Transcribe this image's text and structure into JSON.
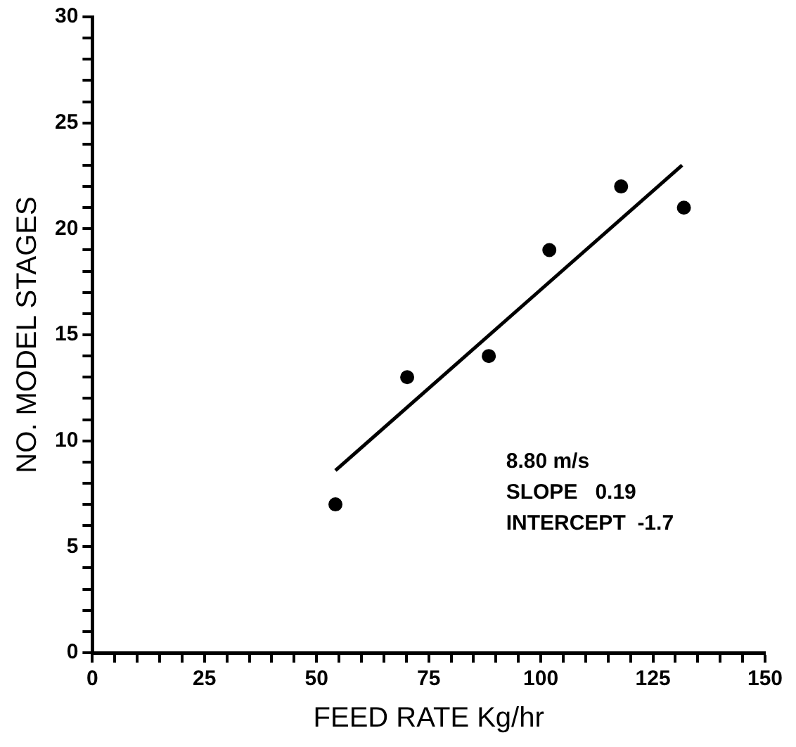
{
  "chart_data": {
    "type": "scatter",
    "xlabel": "FEED RATE Kg/hr",
    "ylabel": "NO. MODEL STAGES",
    "annotations": [
      "8.80 m/s",
      "SLOPE   0.19",
      "INTERCEPT  -1.7"
    ],
    "series": [
      {
        "type": "scatter",
        "color": "#000000",
        "x": [
          54.2,
          70.2,
          88.4,
          101.9,
          117.9,
          131.9
        ],
        "values": [
          7.0,
          13.0,
          14.0,
          19.0,
          22.0,
          21.0
        ],
        "marker": "circle"
      },
      {
        "type": "line",
        "color": "#000000",
        "x": [
          54.2,
          131.5
        ],
        "values": [
          8.6,
          23.0
        ],
        "marker": "none",
        "line_style": "solid"
      }
    ],
    "xlim": [
      0,
      150
    ],
    "xticks": [
      0,
      {
        "value": 5,
        "label": null
      },
      {
        "value": 10,
        "label": null
      },
      {
        "value": 15,
        "label": null
      },
      {
        "value": 20,
        "label": null
      },
      25,
      {
        "value": 30,
        "label": null
      },
      {
        "value": 35,
        "label": null
      },
      {
        "value": 40,
        "label": null
      },
      {
        "value": 45,
        "label": null
      },
      50,
      {
        "value": 55,
        "label": null
      },
      {
        "value": 60,
        "label": null
      },
      {
        "value": 65,
        "label": null
      },
      {
        "value": 70,
        "label": null
      },
      75,
      {
        "value": 80,
        "label": null
      },
      {
        "value": 85,
        "label": null
      },
      {
        "value": 90,
        "label": null
      },
      {
        "value": 95,
        "label": null
      },
      100,
      {
        "value": 105,
        "label": null
      },
      {
        "value": 110,
        "label": null
      },
      {
        "value": 115,
        "label": null
      },
      {
        "value": 120,
        "label": null
      },
      125,
      {
        "value": 130,
        "label": null
      },
      {
        "value": 135,
        "label": null
      },
      {
        "value": 140,
        "label": null
      },
      {
        "value": 145,
        "label": null
      },
      150
    ],
    "ylim": [
      0,
      30
    ],
    "yticks": [
      0,
      {
        "value": 1,
        "label": null
      },
      {
        "value": 2,
        "label": null
      },
      {
        "value": 3,
        "label": null
      },
      {
        "value": 4,
        "label": null
      },
      5,
      {
        "value": 6,
        "label": null
      },
      {
        "value": 7,
        "label": null
      },
      {
        "value": 8,
        "label": null
      },
      {
        "value": 9,
        "label": null
      },
      10,
      {
        "value": 11,
        "label": null
      },
      {
        "value": 12,
        "label": null
      },
      {
        "value": 13,
        "label": null
      },
      {
        "value": 14,
        "label": null
      },
      15,
      {
        "value": 16,
        "label": null
      },
      {
        "value": 17,
        "label": null
      },
      {
        "value": 18,
        "label": null
      },
      {
        "value": 19,
        "label": null
      },
      20,
      {
        "value": 21,
        "label": null
      },
      {
        "value": 22,
        "label": null
      },
      {
        "value": 23,
        "label": null
      },
      {
        "value": 24,
        "label": null
      },
      25,
      {
        "value": 26,
        "label": null
      },
      {
        "value": 27,
        "label": null
      },
      {
        "value": 28,
        "label": null
      },
      {
        "value": 29,
        "label": null
      },
      30
    ],
    "grid": false,
    "legend": false
  }
}
